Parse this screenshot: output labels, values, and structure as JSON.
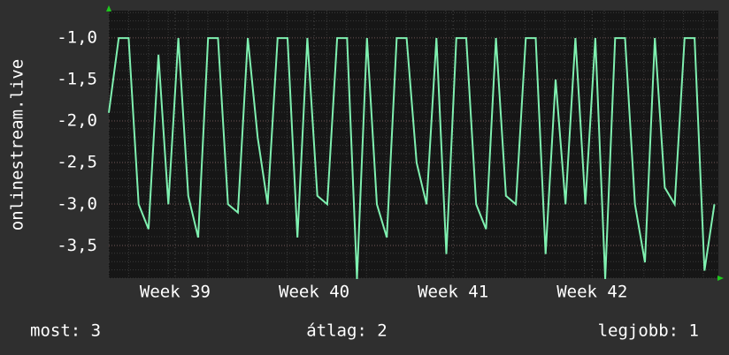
{
  "chart_data": {
    "type": "line",
    "y_label": "onlinestream.live",
    "x": [
      0,
      0.5,
      1,
      1.5,
      2,
      2.5,
      3,
      3.5,
      4,
      4.5,
      5,
      5.5,
      6,
      6.5,
      7,
      7.5,
      8,
      8.5,
      9,
      9.5,
      10,
      10.5,
      11,
      11.5,
      12,
      12.5,
      13,
      13.5,
      14,
      14.5,
      15,
      15.5,
      16,
      16.5,
      17,
      17.5,
      18,
      18.5,
      19,
      19.5,
      20,
      20.5,
      21,
      21.5,
      22,
      22.5,
      23,
      23.5,
      24,
      24.5,
      25,
      25.5,
      26,
      26.5,
      27,
      27.5,
      28,
      28.5,
      29,
      29.5,
      30,
      30.5
    ],
    "series": [
      {
        "color": "#7ff0b0",
        "values": [
          -1.9,
          -1,
          -1,
          -3,
          -3.3,
          -1.2,
          -3,
          -1,
          -2.9,
          -3.4,
          -1,
          -1,
          -3,
          -3.1,
          -1,
          -2.2,
          -3,
          -1,
          -1,
          -3.4,
          -1,
          -2.9,
          -3,
          -1,
          -1,
          -3.9,
          -1,
          -3,
          -3.4,
          -1,
          -1,
          -2.5,
          -3,
          -1,
          -3.6,
          -1,
          -1,
          -3,
          -3.3,
          -1,
          -2.9,
          -3,
          -1,
          -1,
          -3.6,
          -1.5,
          -3,
          -1,
          -3,
          -1,
          -3.9,
          -1,
          -1,
          -3,
          -3.7,
          -1,
          -2.8,
          -3,
          -1,
          -1,
          -3.8,
          -3
        ]
      }
    ],
    "xlim": [
      0,
      30.7
    ],
    "xticks": [
      {
        "value": 3.34,
        "label": "Week 39"
      },
      {
        "value": 10.34,
        "label": "Week 40"
      },
      {
        "value": 17.34,
        "label": "Week 41"
      },
      {
        "value": 24.34,
        "label": "Week 42"
      }
    ],
    "ylim": [
      -3.89,
      -0.67
    ],
    "yticks": [
      {
        "value": -1,
        "label": "-1,0"
      },
      {
        "value": -1.5,
        "label": "-1,5"
      },
      {
        "value": -2,
        "label": "-2,0"
      },
      {
        "value": -2.5,
        "label": "-2,5"
      },
      {
        "value": -3,
        "label": "-3,0"
      },
      {
        "value": -3.5,
        "label": "-3,5"
      }
    ],
    "grid": true
  },
  "summary": [
    "most: 3",
    "átlag: 2",
    "legjobb: 1"
  ]
}
